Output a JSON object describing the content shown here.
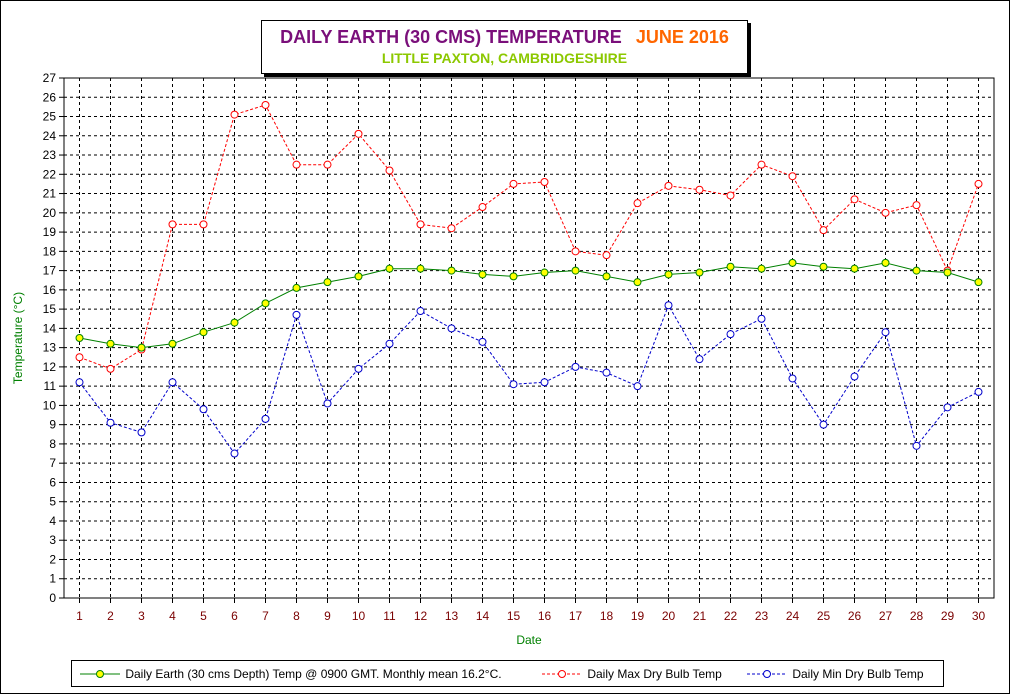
{
  "chart_data": {
    "type": "line",
    "title": "DAILY EARTH (30 CMS) TEMPERATURE",
    "title_month": "JUNE 2016",
    "subtitle": "LITTLE PAXTON, CAMBRIDGESHIRE",
    "xlabel": "Date",
    "ylabel": "Temperature (°C)",
    "x": [
      1,
      2,
      3,
      4,
      5,
      6,
      7,
      8,
      9,
      10,
      11,
      12,
      13,
      14,
      15,
      16,
      17,
      18,
      19,
      20,
      21,
      22,
      23,
      24,
      25,
      26,
      27,
      28,
      29,
      30
    ],
    "ylim": [
      0,
      27
    ],
    "y_ticks": [
      0,
      1,
      2,
      3,
      4,
      5,
      6,
      7,
      8,
      9,
      10,
      11,
      12,
      13,
      14,
      15,
      16,
      17,
      18,
      19,
      20,
      21,
      22,
      23,
      24,
      25,
      26,
      27
    ],
    "grid": true,
    "legend_position": "bottom",
    "series": [
      {
        "name": "Daily Earth (30 cms Depth) Temp @ 0900 GMT. Monthly mean 16.2°C.",
        "color": "#008000",
        "marker_color": "#ffff00",
        "style": "solid",
        "values": [
          13.5,
          13.2,
          13.0,
          13.2,
          13.8,
          14.3,
          15.3,
          16.1,
          16.4,
          16.7,
          17.1,
          17.1,
          17.0,
          16.8,
          16.7,
          16.9,
          17.0,
          16.7,
          16.4,
          16.8,
          16.9,
          17.2,
          17.1,
          17.4,
          17.2,
          17.1,
          17.4,
          17.0,
          16.9,
          16.4
        ]
      },
      {
        "name": "Daily Max Dry Bulb Temp",
        "color": "#ff0000",
        "style": "dashed",
        "values": [
          12.5,
          11.9,
          12.9,
          19.4,
          19.4,
          25.1,
          25.6,
          22.5,
          22.5,
          24.1,
          22.2,
          19.4,
          19.2,
          20.3,
          21.5,
          21.6,
          18.0,
          17.8,
          20.5,
          21.4,
          21.2,
          20.9,
          22.5,
          21.9,
          19.1,
          20.7,
          20.0,
          20.4,
          17.0,
          21.5
        ]
      },
      {
        "name": "Daily Min Dry Bulb Temp",
        "color": "#0000cc",
        "style": "dashed",
        "values": [
          11.2,
          9.1,
          8.6,
          11.2,
          9.8,
          7.5,
          9.3,
          14.7,
          10.1,
          11.9,
          13.2,
          14.9,
          14.0,
          13.3,
          11.1,
          11.2,
          12.0,
          11.7,
          11.0,
          15.2,
          12.4,
          13.7,
          14.5,
          11.4,
          9.0,
          11.5,
          13.8,
          7.9,
          9.9,
          10.7
        ]
      }
    ]
  }
}
